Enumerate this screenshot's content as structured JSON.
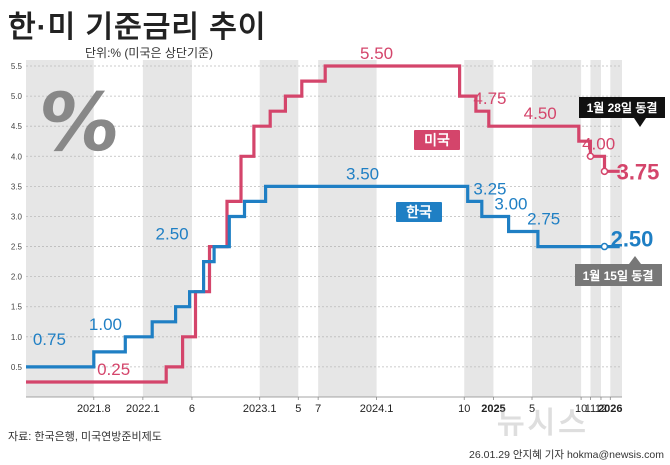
{
  "header": {
    "title": "한·미 기준금리 추이",
    "subtitle": "단위:% (미국은 상단기준)"
  },
  "footer": {
    "source": "자료: 한국은행, 미국연방준비제도",
    "credit": "26.01.29 안지혜 기자 hokma@newsis.com",
    "watermark": "뉴시스"
  },
  "colors": {
    "us": "#d4456b",
    "kr": "#1f7fc4",
    "grid": "#bbbbbb",
    "band": "#e6e6e6"
  },
  "chart_data": {
    "type": "line",
    "title": "한·미 기준금리 추이",
    "ylabel": "단위:% (미국은 상단기준)",
    "ylim": [
      0,
      5.6
    ],
    "xlim": [
      2021.0,
      2026.1
    ],
    "yticks": [
      "0.5",
      "1.0",
      "1.5",
      "2.0",
      "2.5",
      "3.0",
      "3.5",
      "4.0",
      "4.5",
      "5.0",
      "5.5"
    ],
    "xticks": [
      {
        "label": "2021.8",
        "x": 2021.58,
        "bold": false
      },
      {
        "label": "2022.1",
        "x": 2022.0,
        "bold": false
      },
      {
        "label": "6",
        "x": 2022.42,
        "bold": false
      },
      {
        "label": "2023.1",
        "x": 2023.0,
        "bold": false
      },
      {
        "label": "5",
        "x": 2023.33,
        "bold": false
      },
      {
        "label": "7",
        "x": 2023.5,
        "bold": false
      },
      {
        "label": "2024.1",
        "x": 2024.0,
        "bold": false
      },
      {
        "label": "10",
        "x": 2024.75,
        "bold": false
      },
      {
        "label": "2025",
        "x": 2025.0,
        "bold": true
      },
      {
        "label": "5",
        "x": 2025.33,
        "bold": false
      },
      {
        "label": "10",
        "x": 2025.75,
        "bold": false
      },
      {
        "label": "11",
        "x": 2025.83,
        "bold": false
      },
      {
        "label": "12",
        "x": 2025.92,
        "bold": false
      },
      {
        "label": "2026",
        "x": 2026.0,
        "bold": true
      }
    ],
    "shaded_periods": [
      [
        2021.0,
        2021.58
      ],
      [
        2022.0,
        2022.42
      ],
      [
        2023.0,
        2023.33
      ],
      [
        2023.5,
        2024.0
      ],
      [
        2024.75,
        2025.0
      ],
      [
        2025.33,
        2025.75
      ],
      [
        2025.83,
        2025.92
      ],
      [
        2026.0,
        2026.1
      ]
    ],
    "series": [
      {
        "name": "미국",
        "color": "#d4456b",
        "points": [
          [
            2021.0,
            0.25
          ],
          [
            2022.2,
            0.25
          ],
          [
            2022.2,
            0.5
          ],
          [
            2022.34,
            0.5
          ],
          [
            2022.34,
            1.0
          ],
          [
            2022.45,
            1.0
          ],
          [
            2022.45,
            1.75
          ],
          [
            2022.57,
            1.75
          ],
          [
            2022.57,
            2.5
          ],
          [
            2022.72,
            2.5
          ],
          [
            2022.72,
            3.25
          ],
          [
            2022.84,
            3.25
          ],
          [
            2022.84,
            4.0
          ],
          [
            2022.95,
            4.0
          ],
          [
            2022.95,
            4.5
          ],
          [
            2023.09,
            4.5
          ],
          [
            2023.09,
            4.75
          ],
          [
            2023.22,
            4.75
          ],
          [
            2023.22,
            5.0
          ],
          [
            2023.36,
            5.0
          ],
          [
            2023.36,
            5.25
          ],
          [
            2023.56,
            5.25
          ],
          [
            2023.56,
            5.5
          ],
          [
            2024.71,
            5.5
          ],
          [
            2024.71,
            5.0
          ],
          [
            2024.85,
            5.0
          ],
          [
            2024.85,
            4.75
          ],
          [
            2024.96,
            4.75
          ],
          [
            2024.96,
            4.5
          ],
          [
            2025.73,
            4.5
          ],
          [
            2025.73,
            4.25
          ],
          [
            2025.83,
            4.25
          ],
          [
            2025.83,
            4.0
          ],
          [
            2025.95,
            4.0
          ],
          [
            2025.95,
            3.75
          ],
          [
            2026.08,
            3.75
          ]
        ],
        "rate_labels": [
          {
            "text": "0.25",
            "x": 2021.75,
            "y": 0.25
          },
          {
            "text": "5.50",
            "x": 2024.0,
            "y": 5.5
          },
          {
            "text": "4.75",
            "x": 2024.97,
            "y": 4.75
          },
          {
            "text": "4.50",
            "x": 2025.4,
            "y": 4.5
          },
          {
            "text": "4.00",
            "x": 2025.9,
            "y": 4.0
          }
        ],
        "legend": "미국",
        "end_value": "3.75",
        "end_note": "1월 28일 동결"
      },
      {
        "name": "한국",
        "color": "#1f7fc4",
        "points": [
          [
            2021.0,
            0.5
          ],
          [
            2021.58,
            0.5
          ],
          [
            2021.58,
            0.75
          ],
          [
            2021.85,
            0.75
          ],
          [
            2021.85,
            1.0
          ],
          [
            2022.08,
            1.0
          ],
          [
            2022.08,
            1.25
          ],
          [
            2022.28,
            1.25
          ],
          [
            2022.28,
            1.5
          ],
          [
            2022.4,
            1.5
          ],
          [
            2022.4,
            1.75
          ],
          [
            2022.52,
            1.75
          ],
          [
            2022.52,
            2.25
          ],
          [
            2022.61,
            2.25
          ],
          [
            2022.61,
            2.5
          ],
          [
            2022.74,
            2.5
          ],
          [
            2022.74,
            3.0
          ],
          [
            2022.87,
            3.0
          ],
          [
            2022.87,
            3.25
          ],
          [
            2023.05,
            3.25
          ],
          [
            2023.05,
            3.5
          ],
          [
            2024.78,
            3.5
          ],
          [
            2024.78,
            3.25
          ],
          [
            2024.9,
            3.25
          ],
          [
            2024.9,
            3.0
          ],
          [
            2025.13,
            3.0
          ],
          [
            2025.13,
            2.75
          ],
          [
            2025.38,
            2.75
          ],
          [
            2025.38,
            2.5
          ],
          [
            2026.08,
            2.5
          ]
        ],
        "rate_labels": [
          {
            "text": "0.75",
            "x": 2021.2,
            "y": 0.75
          },
          {
            "text": "1.00",
            "x": 2021.68,
            "y": 1.0
          },
          {
            "text": "2.50",
            "x": 2022.25,
            "y": 2.5
          },
          {
            "text": "3.50",
            "x": 2023.88,
            "y": 3.5
          },
          {
            "text": "3.25",
            "x": 2024.97,
            "y": 3.25
          },
          {
            "text": "3.00",
            "x": 2025.15,
            "y": 3.0
          },
          {
            "text": "2.75",
            "x": 2025.43,
            "y": 2.75
          }
        ],
        "legend": "한국",
        "end_value": "2.50",
        "end_note": "1월 15일 동결"
      }
    ]
  }
}
